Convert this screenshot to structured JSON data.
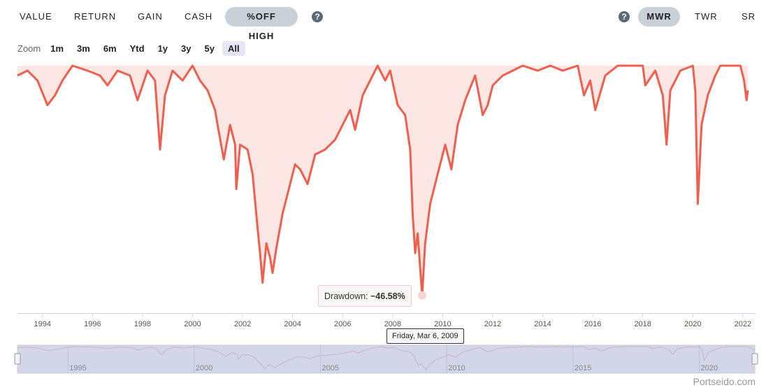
{
  "tabs": [
    {
      "label": "VALUE"
    },
    {
      "label": "RETURN"
    },
    {
      "label": "GAIN"
    },
    {
      "label": "CASH"
    },
    {
      "label": "%OFF HIGH",
      "active": true
    }
  ],
  "right_tabs": [
    {
      "label": "MWR",
      "active": true
    },
    {
      "label": "TWR"
    },
    {
      "label": "SR"
    }
  ],
  "help_icon": "?",
  "zoom": {
    "label": "Zoom",
    "buttons": [
      "1m",
      "3m",
      "6m",
      "Ytd",
      "1y",
      "3y",
      "5y",
      "All"
    ],
    "active": "All"
  },
  "tooltip": {
    "series": "Drawdown: ",
    "value": "−46.58%",
    "date": "Friday, Mar 6, 2009"
  },
  "brand": "Portseido.com",
  "colors": {
    "line": "#ee5f4e",
    "area": "#fce7e5",
    "navigator": "#d3d6e8",
    "active_tab": "#c9d0d7"
  },
  "chart_data": {
    "type": "area",
    "ylabel": "",
    "xlim": [
      1993.0,
      2022.2
    ],
    "ylim": [
      -50,
      0
    ],
    "grid": false,
    "x_ticks": [
      "1994",
      "1996",
      "1998",
      "2000",
      "2002",
      "2004",
      "2006",
      "2008",
      "2010",
      "2012",
      "2014",
      "2016",
      "2018",
      "2020",
      "2022"
    ],
    "navigator_ticks": [
      "1995",
      "2000",
      "2005",
      "2010",
      "2015",
      "2020"
    ],
    "points": [
      [
        1993.0,
        -2
      ],
      [
        1993.4,
        -1
      ],
      [
        1993.8,
        -3
      ],
      [
        1994.2,
        -8
      ],
      [
        1994.5,
        -6
      ],
      [
        1994.8,
        -3
      ],
      [
        1995.2,
        0
      ],
      [
        1995.8,
        -1
      ],
      [
        1996.3,
        -2
      ],
      [
        1996.6,
        -4
      ],
      [
        1997.0,
        -1
      ],
      [
        1997.5,
        -2
      ],
      [
        1997.8,
        -7
      ],
      [
        1998.2,
        -1
      ],
      [
        1998.5,
        -3
      ],
      [
        1998.7,
        -17
      ],
      [
        1998.9,
        -6
      ],
      [
        1999.2,
        -1
      ],
      [
        1999.6,
        -3
      ],
      [
        2000.0,
        0
      ],
      [
        2000.3,
        -3
      ],
      [
        2000.6,
        -5
      ],
      [
        2000.9,
        -9
      ],
      [
        2001.0,
        -12
      ],
      [
        2001.25,
        -19
      ],
      [
        2001.5,
        -12
      ],
      [
        2001.7,
        -16
      ],
      [
        2001.75,
        -25
      ],
      [
        2001.9,
        -16
      ],
      [
        2002.2,
        -17
      ],
      [
        2002.4,
        -22
      ],
      [
        2002.6,
        -33
      ],
      [
        2002.7,
        -38
      ],
      [
        2002.8,
        -44
      ],
      [
        2002.95,
        -36
      ],
      [
        2003.1,
        -39
      ],
      [
        2003.2,
        -42
      ],
      [
        2003.35,
        -37
      ],
      [
        2003.6,
        -30
      ],
      [
        2003.9,
        -24
      ],
      [
        2004.1,
        -20
      ],
      [
        2004.3,
        -21
      ],
      [
        2004.6,
        -24
      ],
      [
        2004.9,
        -18
      ],
      [
        2005.3,
        -17
      ],
      [
        2005.7,
        -15
      ],
      [
        2006.0,
        -12
      ],
      [
        2006.3,
        -9
      ],
      [
        2006.5,
        -13
      ],
      [
        2006.8,
        -6
      ],
      [
        2007.1,
        -3
      ],
      [
        2007.4,
        0
      ],
      [
        2007.7,
        -3
      ],
      [
        2007.9,
        -1
      ],
      [
        2008.2,
        -8
      ],
      [
        2008.5,
        -10
      ],
      [
        2008.7,
        -17
      ],
      [
        2008.8,
        -30
      ],
      [
        2008.9,
        -38
      ],
      [
        2009.0,
        -34
      ],
      [
        2009.18,
        -46.58
      ],
      [
        2009.3,
        -36
      ],
      [
        2009.5,
        -28
      ],
      [
        2009.8,
        -22
      ],
      [
        2010.1,
        -16
      ],
      [
        2010.35,
        -21
      ],
      [
        2010.6,
        -12
      ],
      [
        2010.9,
        -7
      ],
      [
        2011.3,
        -2
      ],
      [
        2011.6,
        -10
      ],
      [
        2011.8,
        -8
      ],
      [
        2012.0,
        -4
      ],
      [
        2012.4,
        -2
      ],
      [
        2012.8,
        -1
      ],
      [
        2013.2,
        0
      ],
      [
        2013.8,
        -1
      ],
      [
        2014.3,
        0
      ],
      [
        2014.8,
        -1
      ],
      [
        2015.4,
        0
      ],
      [
        2015.65,
        -6
      ],
      [
        2015.9,
        -3
      ],
      [
        2016.1,
        -9
      ],
      [
        2016.5,
        -2
      ],
      [
        2017.0,
        0
      ],
      [
        2018.0,
        0
      ],
      [
        2018.1,
        -4
      ],
      [
        2018.5,
        -1
      ],
      [
        2018.8,
        -6
      ],
      [
        2018.95,
        -16
      ],
      [
        2019.1,
        -5
      ],
      [
        2019.5,
        -1
      ],
      [
        2020.0,
        0
      ],
      [
        2020.1,
        -5
      ],
      [
        2020.2,
        -28
      ],
      [
        2020.35,
        -12
      ],
      [
        2020.6,
        -6
      ],
      [
        2020.9,
        -2
      ],
      [
        2021.1,
        0
      ],
      [
        2021.9,
        0
      ],
      [
        2022.05,
        -3
      ],
      [
        2022.15,
        -7
      ],
      [
        2022.2,
        -5
      ]
    ]
  }
}
